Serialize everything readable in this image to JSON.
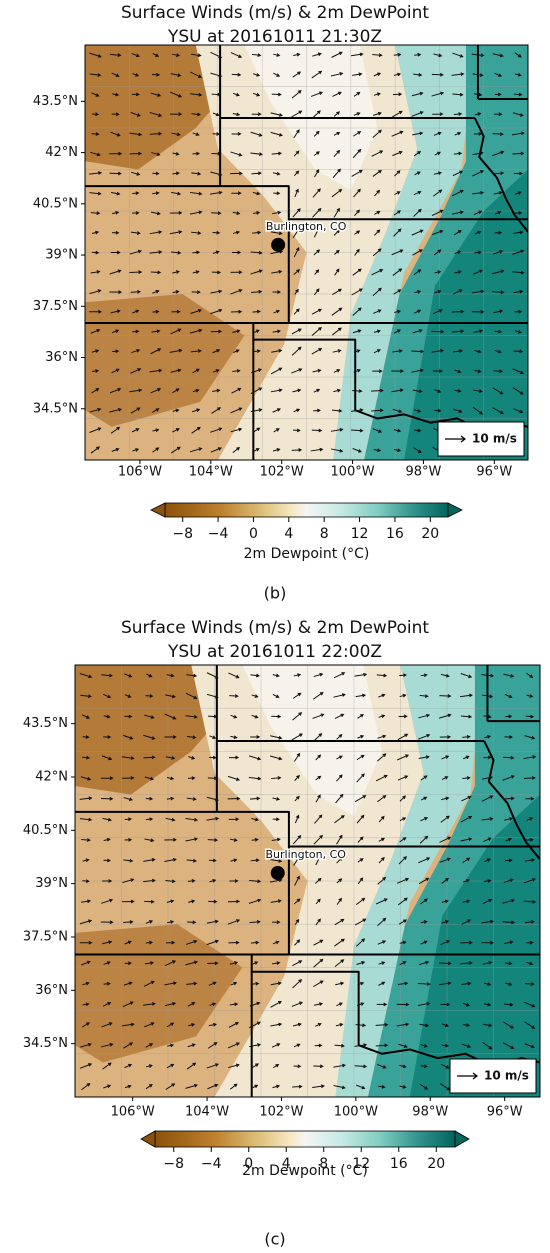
{
  "panels": [
    {
      "title": "Surface Winds (m/s) & 2m DewPoint",
      "subtitle": "YSU at 20161011 21:30Z",
      "lat_lim": [
        33,
        45.15
      ],
      "lon_lim": [
        -107.55,
        -95.05
      ],
      "lat_ticks": [
        {
          "value": 43.5,
          "label": "43.5°N"
        },
        {
          "value": 42,
          "label": "42°N"
        },
        {
          "value": 40.5,
          "label": "40.5°N"
        },
        {
          "value": 39,
          "label": "39°N"
        },
        {
          "value": 37.5,
          "label": "37.5°N"
        },
        {
          "value": 36,
          "label": "36°N"
        },
        {
          "value": 34.5,
          "label": "34.5°N"
        }
      ],
      "lon_ticks": [
        {
          "value": -106,
          "label": "106°W"
        },
        {
          "value": -104,
          "label": "104°W"
        },
        {
          "value": -102,
          "label": "102°W"
        },
        {
          "value": -100,
          "label": "100°W"
        },
        {
          "value": -98,
          "label": "98°W"
        },
        {
          "value": -96,
          "label": "96°W"
        }
      ],
      "station": {
        "label": "Burlington, CO",
        "lat": 39.3,
        "lon": -102.1
      },
      "wind_key": "10 m/s",
      "colorbar": {
        "label": "2m Dewpoint (°C)",
        "lim": [
          -10,
          22
        ],
        "ticks": [
          {
            "value": -8,
            "label": "−8"
          },
          {
            "value": -4,
            "label": "−4"
          },
          0,
          4,
          8,
          12,
          16,
          20
        ]
      },
      "caption": "(b)"
    },
    {
      "title": "Surface Winds (m/s) & 2m DewPoint",
      "subtitle": "YSU at 20161011 22:00Z",
      "lat_lim": [
        33,
        45.15
      ],
      "lon_lim": [
        -107.55,
        -95.05
      ],
      "lat_ticks": [
        {
          "value": 43.5,
          "label": "43.5°N"
        },
        {
          "value": 42,
          "label": "42°N"
        },
        {
          "value": 40.5,
          "label": "40.5°N"
        },
        {
          "value": 39,
          "label": "39°N"
        },
        {
          "value": 37.5,
          "label": "37.5°N"
        },
        {
          "value": 36,
          "label": "36°N"
        },
        {
          "value": 34.5,
          "label": "34.5°N"
        }
      ],
      "lon_ticks": [
        {
          "value": -106,
          "label": "106°W"
        },
        {
          "value": -104,
          "label": "104°W"
        },
        {
          "value": -102,
          "label": "102°W"
        },
        {
          "value": -100,
          "label": "100°W"
        },
        {
          "value": -98,
          "label": "98°W"
        },
        {
          "value": -96,
          "label": "96°W"
        }
      ],
      "station": {
        "label": "Burlington, CO",
        "lat": 39.3,
        "lon": -102.1
      },
      "wind_key": "10 m/s",
      "colorbar": {
        "label": "2m Dewpoint (°C)",
        "lim": [
          -10,
          22
        ],
        "ticks": [
          {
            "value": -8,
            "label": "−8"
          },
          {
            "value": -4,
            "label": "−4"
          },
          0,
          4,
          8,
          12,
          16,
          20
        ]
      },
      "caption": "(c)"
    }
  ]
}
